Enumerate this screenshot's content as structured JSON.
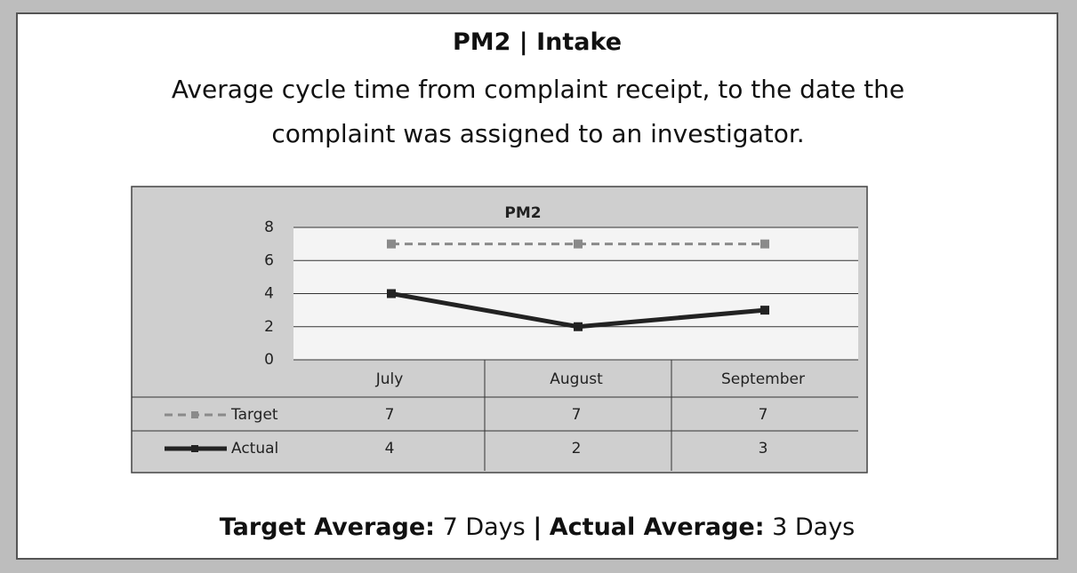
{
  "header": {
    "title": "PM2 | Intake",
    "description": "Average cycle time from complaint receipt, to the date the complaint was assigned to an investigator."
  },
  "chart_data": {
    "type": "line",
    "title": "PM2",
    "categories": [
      "July",
      "August",
      "September"
    ],
    "series": [
      {
        "name": "Target",
        "color": "#8a8a8a",
        "dashed": true,
        "values": [
          7,
          7,
          7
        ]
      },
      {
        "name": "Actual",
        "color": "#222222",
        "dashed": false,
        "values": [
          4,
          2,
          3
        ]
      }
    ],
    "ylim": [
      0,
      8
    ],
    "yticks": [
      0,
      2,
      4,
      6,
      8
    ],
    "grid": true,
    "data_table": true
  },
  "footer": {
    "target_label": "Target Average:",
    "target_value": "7 Days",
    "separator": "|",
    "actual_label": "Actual Average:",
    "actual_value": "3 Days"
  }
}
